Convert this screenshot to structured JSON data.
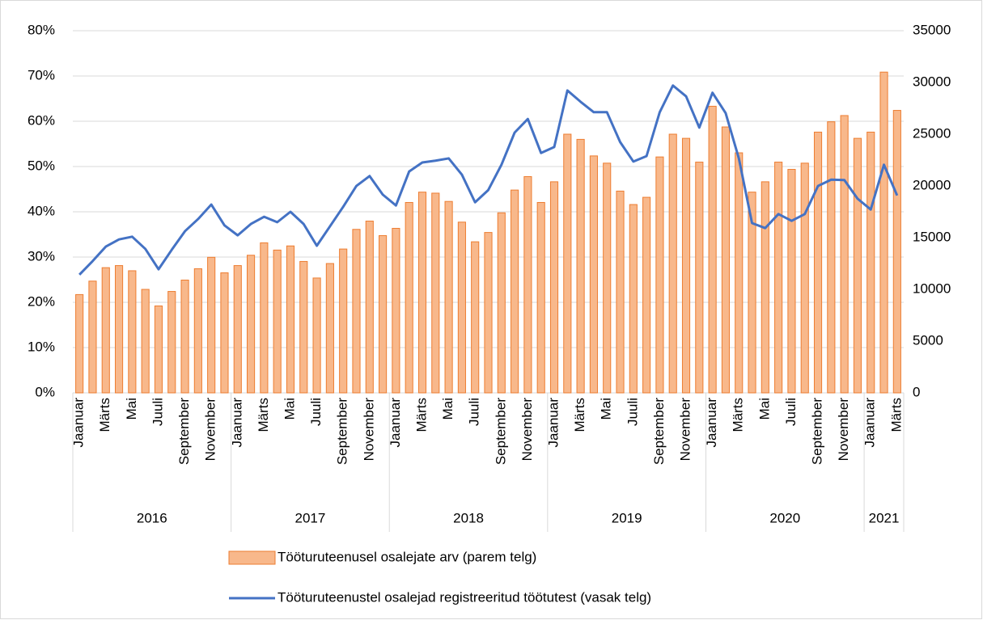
{
  "chart_data": {
    "type": "bar_line",
    "categories": [
      "Jaanuar",
      null,
      "Märts",
      null,
      "Mai",
      null,
      "Juuli",
      null,
      "September",
      null,
      "November",
      null,
      "Jaanuar",
      null,
      "Märts",
      null,
      "Mai",
      null,
      "Juuli",
      null,
      "September",
      null,
      "November",
      null,
      "Jaanuar",
      null,
      "Märts",
      null,
      "Mai",
      null,
      "Juuli",
      null,
      "September",
      null,
      "November",
      null,
      "Jaanuar",
      null,
      "Märts",
      null,
      "Mai",
      null,
      "Juuli",
      null,
      "September",
      null,
      "November",
      null,
      "Jaanuar",
      null,
      "Märts",
      null,
      "Mai",
      null,
      "Juuli",
      null,
      "September",
      null,
      "November",
      null,
      "Jaanuar",
      null,
      "Märts"
    ],
    "x_groups": [
      {
        "label": "2016",
        "count": 12
      },
      {
        "label": "2017",
        "count": 12
      },
      {
        "label": "2018",
        "count": 12
      },
      {
        "label": "2019",
        "count": 12
      },
      {
        "label": "2020",
        "count": 12
      },
      {
        "label": "2021",
        "count": 3
      }
    ],
    "series": [
      {
        "name": "Tööturuteenusel osalejate arv (parem telg)",
        "type": "bar",
        "axis": "y2",
        "color": "#f8b88b",
        "edge_color": "#ed7d31",
        "values": [
          9500,
          10800,
          12100,
          12300,
          11800,
          10000,
          8400,
          9800,
          10900,
          12000,
          13100,
          11600,
          12300,
          13300,
          14500,
          13800,
          14200,
          12700,
          11100,
          12500,
          13900,
          15800,
          16600,
          15200,
          15900,
          18400,
          19400,
          19300,
          18500,
          16500,
          14600,
          15500,
          17400,
          19600,
          20900,
          18400,
          20400,
          25000,
          24500,
          22900,
          22200,
          19500,
          18200,
          18900,
          22800,
          25000,
          24600,
          22300,
          27700,
          25700,
          23200,
          19400,
          20400,
          22300,
          21600,
          22200,
          25200,
          26200,
          26800,
          24600,
          25200,
          31000,
          27300
        ]
      },
      {
        "name": "Tööturuteenustel osalejad registreeritud töötutest (vasak telg)",
        "type": "line",
        "axis": "y",
        "color": "#4472c4",
        "values": [
          26.1,
          29.1,
          32.3,
          33.9,
          34.5,
          31.8,
          27.3,
          31.6,
          35.7,
          38.4,
          41.6,
          37.0,
          34.8,
          37.3,
          38.9,
          37.7,
          40.0,
          37.3,
          32.5,
          36.8,
          41.1,
          45.7,
          47.9,
          43.8,
          41.4,
          48.9,
          50.9,
          51.3,
          51.8,
          48.2,
          42.1,
          44.8,
          50.4,
          57.5,
          60.5,
          53.0,
          54.3,
          66.8,
          64.3,
          62.0,
          62.0,
          55.4,
          51.1,
          52.3,
          62.0,
          67.9,
          65.5,
          58.6,
          66.3,
          61.8,
          51.8,
          37.5,
          36.4,
          39.5,
          38.0,
          39.5,
          45.7,
          47.1,
          47.0,
          42.9,
          40.5,
          50.4,
          43.6
        ]
      }
    ],
    "ylim": [
      0,
      80
    ],
    "yticks": [
      {
        "value": 0,
        "label": "0%"
      },
      {
        "value": 10,
        "label": "10%"
      },
      {
        "value": 20,
        "label": "20%"
      },
      {
        "value": 30,
        "label": "30%"
      },
      {
        "value": 40,
        "label": "40%"
      },
      {
        "value": 50,
        "label": "50%"
      },
      {
        "value": 60,
        "label": "60%"
      },
      {
        "value": 70,
        "label": "70%"
      },
      {
        "value": 80,
        "label": "80%"
      }
    ],
    "y2lim": [
      0,
      35000
    ],
    "y2ticks": [
      0,
      5000,
      10000,
      15000,
      20000,
      25000,
      30000,
      35000
    ],
    "grid": true
  }
}
